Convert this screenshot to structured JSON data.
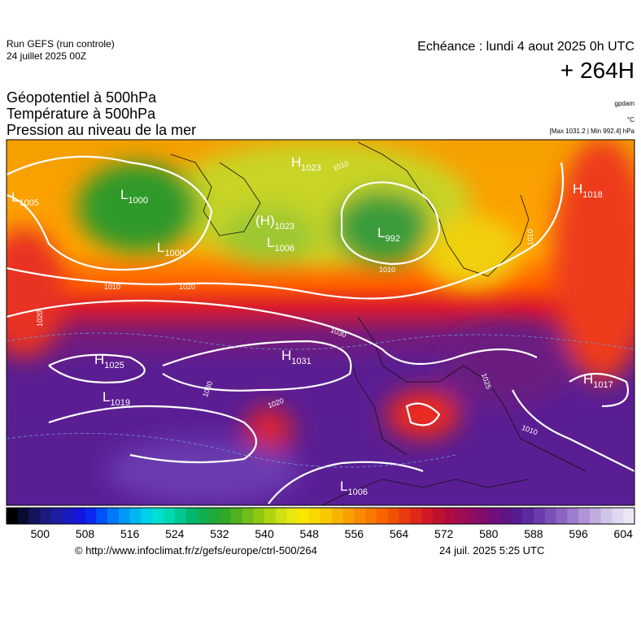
{
  "header": {
    "run": "Run GEFS (run controle)",
    "run_date": "24 juillet 2025 00Z",
    "valid": "Echéance : lundi 4 aout 2025 0h UTC",
    "lead": "+ 264H"
  },
  "fields": [
    "Géopotentiel à 500hPa",
    "Température à 500hPa",
    "Pression au niveau de la mer"
  ],
  "units": {
    "geopotential": "gpdam",
    "temperature": "°C",
    "pressure": "[Max 1031.2 | Min 992.4] hPa"
  },
  "centers": [
    {
      "letter": "L",
      "value": "1005"
    },
    {
      "letter": "L",
      "value": "1000"
    },
    {
      "letter": "H",
      "value": "1023"
    },
    {
      "letter": "(H)",
      "value": "1023"
    },
    {
      "letter": "L",
      "value": "1006"
    },
    {
      "letter": "L",
      "value": "1000"
    },
    {
      "letter": "L",
      "value": "992"
    },
    {
      "letter": "H",
      "value": "1018"
    },
    {
      "letter": "H",
      "value": "1025"
    },
    {
      "letter": "H",
      "value": "1031"
    },
    {
      "letter": "L",
      "value": "1019"
    },
    {
      "letter": "H",
      "value": "1017"
    },
    {
      "letter": "L",
      "value": "1006"
    }
  ],
  "contour_labels": [
    "1010",
    "1010",
    "1020",
    "1020",
    "1030",
    "1030",
    "1020",
    "1010",
    "1010",
    "1025",
    "1010"
  ],
  "colorbar": {
    "ticks": [
      500,
      508,
      516,
      524,
      532,
      540,
      548,
      556,
      564,
      572,
      580,
      588,
      596,
      604
    ]
  },
  "footer": {
    "source": "© http://www.infoclimat.fr/z/gefs/europe/ctrl-500/264",
    "generated": "24 juil. 2025  5:25 UTC"
  }
}
